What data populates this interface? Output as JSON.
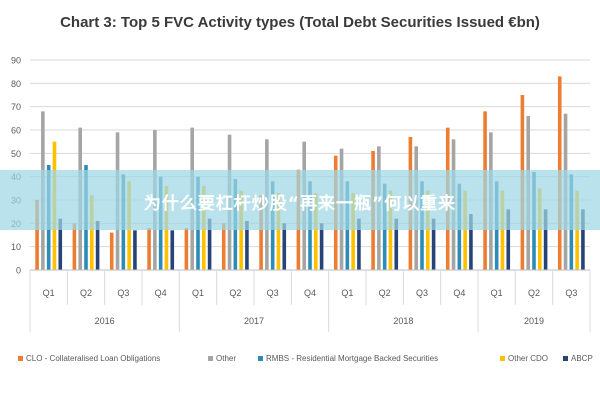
{
  "overlay_text": "为什么要杠杆炒股“再来一瓶”何以重来",
  "chart_data": {
    "type": "bar",
    "title": "Chart 3: Top 5 FVC Activity types (Total Debt Securities Issued €bn)",
    "ylim": [
      0,
      90
    ],
    "yticks": [
      0,
      10,
      20,
      30,
      40,
      50,
      60,
      70,
      80,
      90
    ],
    "grid": true,
    "legend_position": "bottom",
    "categories": [
      "Q1",
      "Q2",
      "Q3",
      "Q4",
      "Q1",
      "Q2",
      "Q3",
      "Q4",
      "Q1",
      "Q2",
      "Q3",
      "Q4",
      "Q1",
      "Q2",
      "Q3"
    ],
    "years": [
      {
        "label": "2016",
        "span": 4
      },
      {
        "label": "2017",
        "span": 4
      },
      {
        "label": "2018",
        "span": 4
      },
      {
        "label": "2019",
        "span": 3
      }
    ],
    "series": [
      {
        "name": "CLO - Collateralised Loan Obligations",
        "color": "#ed7d31",
        "values": [
          30,
          20,
          16,
          18,
          18,
          20,
          32,
          43,
          49,
          51,
          57,
          61,
          68,
          75,
          83
        ]
      },
      {
        "name": "Other",
        "color": "#a5a5a5",
        "values": [
          68,
          61,
          59,
          60,
          61,
          58,
          56,
          55,
          52,
          53,
          53,
          56,
          59,
          66,
          67
        ]
      },
      {
        "name": "RMBS - Residential Mortgage Backed Securities",
        "color": "#2e8bb8",
        "values": [
          45,
          45,
          41,
          40,
          40,
          39,
          38,
          38,
          38,
          37,
          38,
          37,
          38,
          42,
          41
        ]
      },
      {
        "name": "Other CDO",
        "color": "#ffc000",
        "values": [
          55,
          32,
          38,
          36,
          36,
          34,
          33,
          33,
          33,
          34,
          34,
          34,
          34,
          35,
          34
        ]
      },
      {
        "name": "ABCP",
        "color": "#264478",
        "values": [
          22,
          21,
          17,
          17,
          22,
          21,
          20,
          20,
          22,
          22,
          22,
          24,
          26,
          26,
          26
        ]
      }
    ]
  }
}
